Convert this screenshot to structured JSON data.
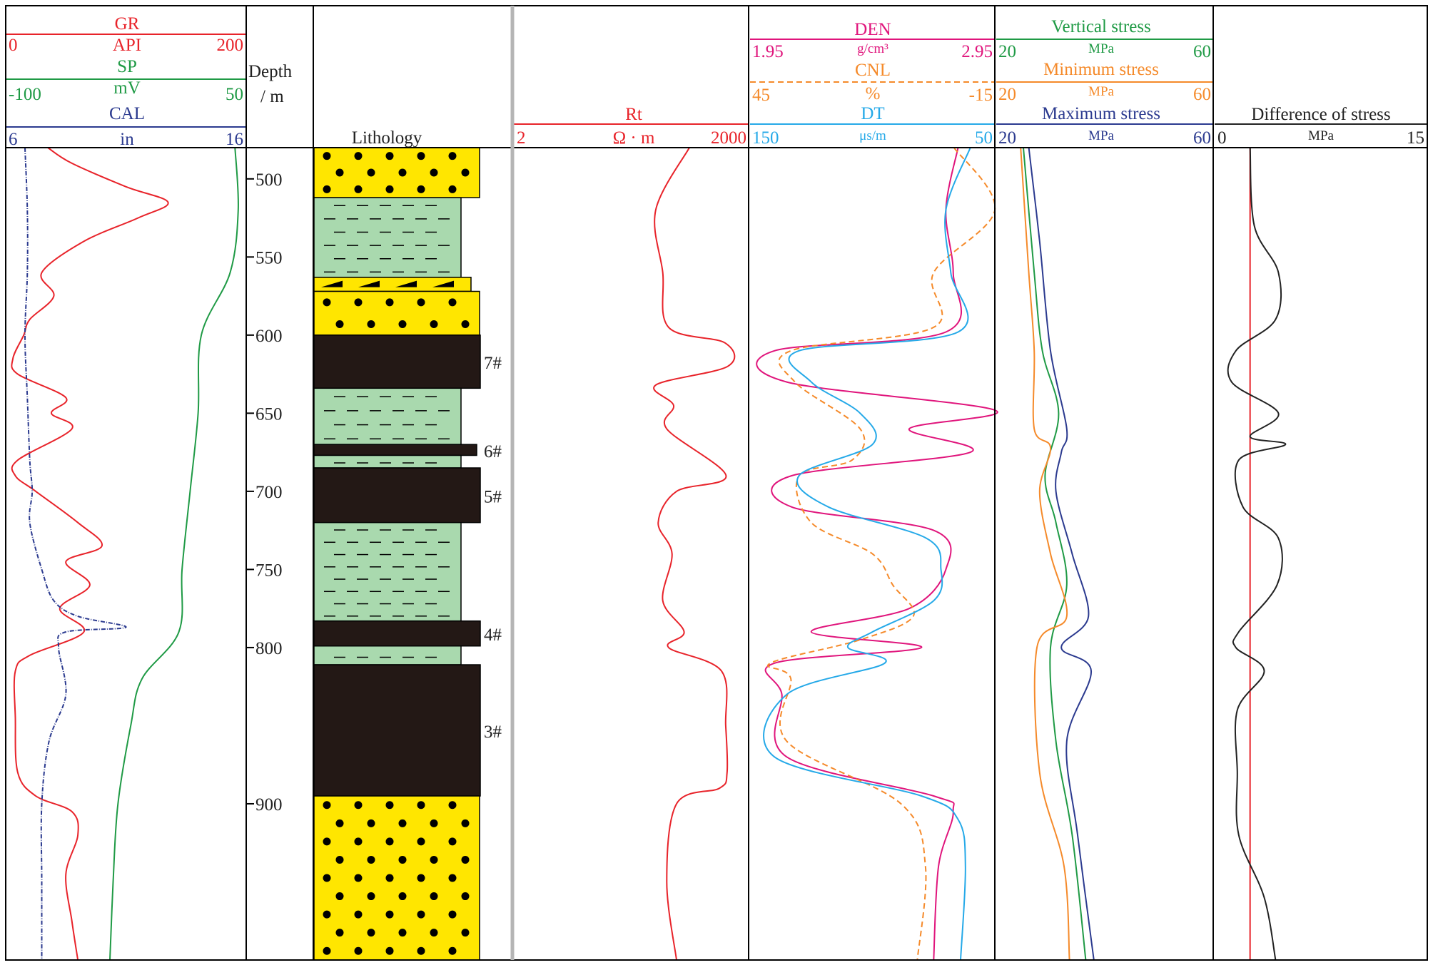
{
  "colors": {
    "gr": "#e8232a",
    "sp": "#1f9a45",
    "cal": "#2b3a8f",
    "rt": "#e8232a",
    "den": "#e0157c",
    "cnl": "#f58a2a",
    "dt": "#25a9e8",
    "sv": "#1f9a45",
    "shmin": "#f58a2a",
    "shmax": "#2b3a8f",
    "diff": "#222222",
    "diff_ref": "#e8232a",
    "sand": "#ffe600",
    "mudstone": "#a9d9ae",
    "coal": "#231815",
    "grid": "#000000"
  },
  "tracks": {
    "curves": {
      "gr": {
        "name": "GR",
        "unit": "API",
        "left": "0",
        "right": "200"
      },
      "sp": {
        "name": "SP",
        "unit": "mV",
        "left": "-100",
        "right": "50"
      },
      "cal": {
        "name": "CAL",
        "unit": "in",
        "left": "6",
        "right": "16"
      },
      "depth": {
        "name1": "Depth",
        "name2": "/ m"
      },
      "lithology": {
        "name": "Lithology"
      },
      "rt": {
        "name": "Rt",
        "unit": "Ω · m",
        "left": "2",
        "right": "2000"
      },
      "den": {
        "name": "DEN",
        "unit": "g/cm³",
        "left": "1.95",
        "right": "2.95"
      },
      "cnl": {
        "name": "CNL",
        "unit": "%",
        "left": "45",
        "right": "-15"
      },
      "dt": {
        "name": "DT",
        "unit": "μs/m",
        "left": "150",
        "right": "50"
      },
      "sv": {
        "name": "Vertical stress",
        "unit": "MPa",
        "left": "20",
        "right": "60"
      },
      "shmin": {
        "name": "Minimum stress",
        "unit": "MPa",
        "left": "20",
        "right": "60"
      },
      "shmax": {
        "name": "Maximum stress",
        "unit": "MPa",
        "left": "20",
        "right": "60"
      },
      "diff": {
        "name": "Difference of stress",
        "unit": "MPa",
        "left": "0",
        "right": "15"
      }
    }
  },
  "chart_data": {
    "type": "line",
    "depth_axis": {
      "label": "Depth / m",
      "range": [
        480,
        1000
      ],
      "ticks": [
        500,
        550,
        600,
        650,
        700,
        750,
        800,
        900
      ]
    },
    "lithology": [
      {
        "top": 480,
        "base": 512,
        "type": "sandstone"
      },
      {
        "top": 512,
        "base": 563,
        "type": "mudstone"
      },
      {
        "top": 563,
        "base": 572,
        "type": "carbonaceous"
      },
      {
        "top": 572,
        "base": 600,
        "type": "sandstone"
      },
      {
        "top": 600,
        "base": 634,
        "type": "coal",
        "label": "7#"
      },
      {
        "top": 634,
        "base": 670,
        "type": "mudstone"
      },
      {
        "top": 670,
        "base": 677,
        "type": "coal",
        "label": "6#"
      },
      {
        "top": 677,
        "base": 685,
        "type": "mudstone"
      },
      {
        "top": 685,
        "base": 720,
        "type": "coal",
        "label": "5#"
      },
      {
        "top": 720,
        "base": 783,
        "type": "mudstone"
      },
      {
        "top": 783,
        "base": 799,
        "type": "coal",
        "label": "4#"
      },
      {
        "top": 799,
        "base": 811,
        "type": "mudstone"
      },
      {
        "top": 811,
        "base": 895,
        "type": "coal",
        "label": "3#"
      },
      {
        "top": 895,
        "base": 1000,
        "type": "sandstone"
      }
    ],
    "series": [
      {
        "key": "gr",
        "name": "GR",
        "scale": [
          0,
          200
        ],
        "depth": [
          480,
          490,
          505,
          515,
          525,
          540,
          560,
          575,
          590,
          600,
          615,
          625,
          640,
          650,
          660,
          680,
          690,
          700,
          720,
          735,
          745,
          760,
          775,
          790,
          805,
          815,
          845,
          880,
          895,
          905,
          920,
          945,
          975,
          1000
        ],
        "values": [
          35,
          55,
          100,
          135,
          110,
          65,
          30,
          40,
          20,
          15,
          6,
          10,
          50,
          38,
          55,
          10,
          8,
          25,
          60,
          80,
          50,
          70,
          45,
          65,
          20,
          8,
          8,
          10,
          25,
          55,
          60,
          50,
          55,
          60
        ]
      },
      {
        "key": "sp",
        "name": "SP",
        "scale": [
          -100,
          50
        ],
        "depth": [
          480,
          520,
          560,
          600,
          650,
          700,
          750,
          790,
          820,
          850,
          900,
          950,
          1000
        ],
        "values": [
          43,
          45,
          40,
          22,
          20,
          15,
          10,
          8,
          -15,
          -22,
          -30,
          -33,
          -35
        ],
        "dash": ""
      },
      {
        "key": "cal",
        "name": "CAL",
        "scale": [
          6,
          16
        ],
        "depth": [
          480,
          520,
          560,
          600,
          640,
          680,
          700,
          720,
          750,
          770,
          780,
          787,
          790,
          800,
          830,
          860,
          900,
          950,
          1000
        ],
        "values": [
          6.8,
          6.9,
          6.9,
          6.8,
          6.9,
          7.0,
          7.1,
          7.0,
          7.5,
          8.0,
          9.0,
          11.0,
          8.5,
          8.2,
          8.5,
          7.8,
          7.5,
          7.5,
          7.5
        ],
        "dash": "6 2 1 2"
      },
      {
        "key": "rt",
        "name": "Rt",
        "scale": [
          2,
          2000
        ],
        "depth": [
          480,
          520,
          560,
          595,
          605,
          620,
          632,
          645,
          660,
          690,
          700,
          720,
          740,
          770,
          790,
          800,
          815,
          850,
          880,
          890,
          900,
          950,
          1000
        ],
        "values": [
          350,
          130,
          160,
          190,
          1000,
          1080,
          130,
          220,
          180,
          1030,
          240,
          140,
          210,
          160,
          300,
          190,
          900,
          1020,
          1060,
          850,
          240,
          180,
          240
        ],
        "log": true
      },
      {
        "key": "den",
        "name": "DEN",
        "scale": [
          1.95,
          2.95
        ],
        "depth": [
          480,
          520,
          560,
          598,
          610,
          630,
          648,
          660,
          675,
          690,
          710,
          725,
          750,
          775,
          790,
          800,
          810,
          830,
          870,
          895,
          905,
          940,
          1000
        ],
        "values": [
          2.8,
          2.75,
          2.78,
          2.75,
          2.05,
          2.1,
          2.95,
          2.6,
          2.85,
          2.12,
          2.12,
          2.7,
          2.75,
          2.6,
          2.2,
          2.65,
          2.05,
          2.08,
          2.1,
          2.7,
          2.78,
          2.72,
          2.7
        ],
        "dash": ""
      },
      {
        "key": "cnl",
        "name": "CNL",
        "scale": [
          45,
          -15
        ],
        "depth": [
          480,
          520,
          560,
          595,
          610,
          630,
          660,
          680,
          690,
          720,
          740,
          760,
          780,
          795,
          810,
          820,
          860,
          900,
          940,
          1000
        ],
        "values": [
          -5,
          -15,
          0,
          0,
          35,
          34,
          18,
          20,
          33,
          30,
          15,
          10,
          5,
          18,
          40,
          35,
          36,
          8,
          2,
          4
        ],
        "dash": "8 5"
      },
      {
        "key": "dt",
        "name": "DT",
        "scale": [
          150,
          50
        ],
        "depth": [
          480,
          520,
          560,
          598,
          610,
          630,
          650,
          670,
          690,
          710,
          730,
          750,
          770,
          790,
          800,
          810,
          830,
          870,
          895,
          910,
          940,
          1000
        ],
        "values": [
          60,
          70,
          68,
          65,
          130,
          125,
          105,
          100,
          130,
          118,
          78,
          72,
          75,
          100,
          110,
          95,
          135,
          140,
          80,
          65,
          62,
          64
        ],
        "dash": ""
      },
      {
        "key": "sv",
        "name": "Vertical stress",
        "scale": [
          20,
          60
        ],
        "depth": [
          480,
          560,
          610,
          650,
          690,
          720,
          760,
          800,
          860,
          920,
          1000
        ],
        "values": [
          25,
          27,
          28.5,
          31.5,
          29,
          31,
          33,
          30,
          31,
          34,
          36.5
        ]
      },
      {
        "key": "shmin",
        "name": "Minimum stress",
        "scale": [
          20,
          60
        ],
        "depth": [
          480,
          560,
          610,
          660,
          672,
          700,
          740,
          780,
          800,
          880,
          940,
          1000
        ],
        "values": [
          24.5,
          26,
          27,
          27,
          30,
          28,
          30,
          33,
          27.5,
          28,
          32.5,
          33.5
        ]
      },
      {
        "key": "shmax",
        "name": "Maximum stress",
        "scale": [
          20,
          60
        ],
        "depth": [
          480,
          540,
          610,
          660,
          675,
          700,
          740,
          780,
          800,
          815,
          860,
          920,
          1000
        ],
        "values": [
          26,
          28,
          30,
          33,
          32,
          31,
          34,
          37,
          32,
          37.5,
          33,
          35,
          38
        ]
      },
      {
        "key": "diff",
        "name": "Difference of stress",
        "scale": [
          0,
          15
        ],
        "depth": [
          480,
          530,
          560,
          590,
          610,
          630,
          650,
          665,
          670,
          680,
          710,
          730,
          760,
          790,
          800,
          815,
          840,
          880,
          920,
          960,
          1000
        ],
        "values": [
          2.5,
          2.8,
          4.5,
          4.3,
          1.5,
          1.2,
          4.5,
          2.5,
          5.0,
          1.7,
          2.0,
          4.5,
          4.4,
          1.7,
          1.5,
          3.5,
          1.6,
          1.6,
          1.7,
          3.5,
          4.3
        ]
      }
    ],
    "diff_reference": 2.5
  }
}
